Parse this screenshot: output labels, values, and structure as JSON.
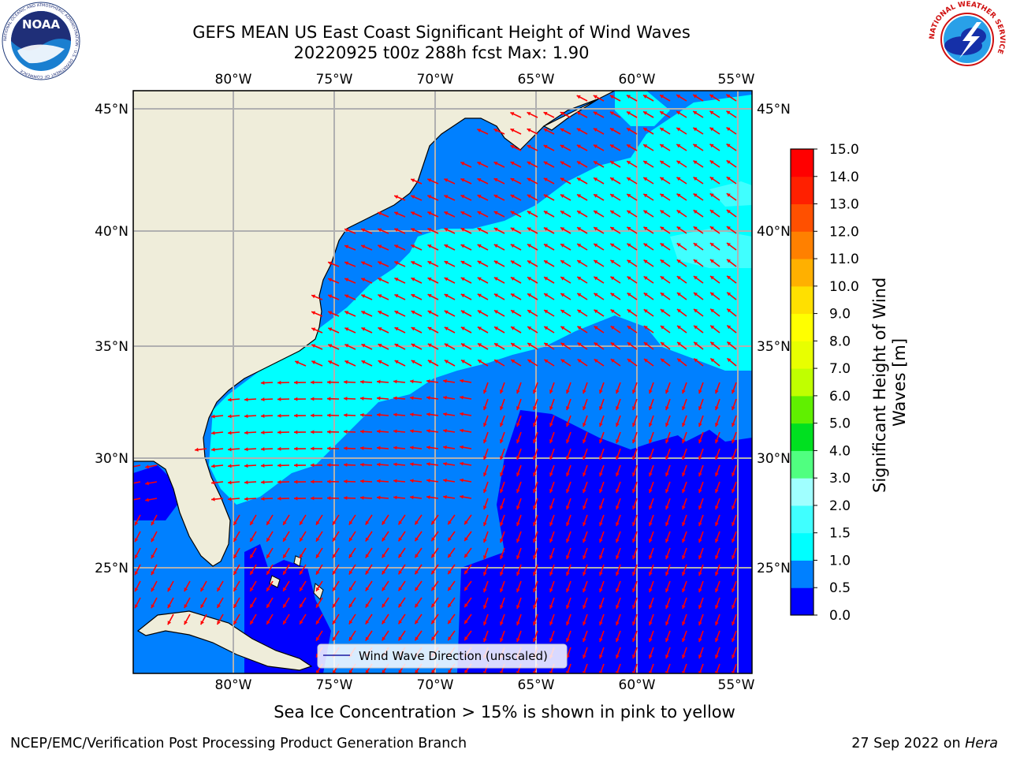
{
  "title": {
    "line1": "GEFS MEAN US East Coast Significant Height of Wind Waves",
    "line2": "20220925 t00z 288h fcst   Max: 1.90"
  },
  "map": {
    "lon_range": [
      -85,
      -54.3
    ],
    "lat_range": [
      20.5,
      45.8
    ],
    "lon_ticks": [
      "80°W",
      "75°W",
      "70°W",
      "65°W",
      "60°W",
      "55°W"
    ],
    "lat_ticks": [
      "45°N",
      "40°N",
      "35°N",
      "30°N",
      "25°N"
    ],
    "grid": true,
    "land_color": "#efedda",
    "arrow_color": "#ff0000"
  },
  "legend": {
    "label": "Wind Wave Direction (unscaled)",
    "placement": "bottom-center"
  },
  "colorbar": {
    "label_line1": "Significant Height of Wind",
    "label_line2": "Waves [m]",
    "levels": [
      "0.0",
      "0.5",
      "1.0",
      "1.5",
      "2.0",
      "3.0",
      "4.0",
      "5.0",
      "6.0",
      "7.0",
      "8.0",
      "9.0",
      "10.0",
      "11.0",
      "12.0",
      "13.0",
      "14.0",
      "15.0"
    ],
    "colors": [
      "#0000ff",
      "#0080ff",
      "#00ffff",
      "#40ffff",
      "#a0ffff",
      "#50ff80",
      "#00e020",
      "#60f000",
      "#c0ff00",
      "#e8ff00",
      "#ffff00",
      "#ffe000",
      "#ffb000",
      "#ff8000",
      "#ff5000",
      "#ff2000",
      "#ff0000"
    ]
  },
  "subtitle": "Sea Ice Concentration > 15% is shown in pink to yellow",
  "footer": {
    "left": "NCEP/EMC/Verification Post Processing Product Generation Branch",
    "right_date": "27 Sep 2022 on ",
    "right_host": "Hera"
  },
  "logos": {
    "noaa_text": "NOAA",
    "nws_text": "NATIONAL WEATHER SERVICE"
  }
}
